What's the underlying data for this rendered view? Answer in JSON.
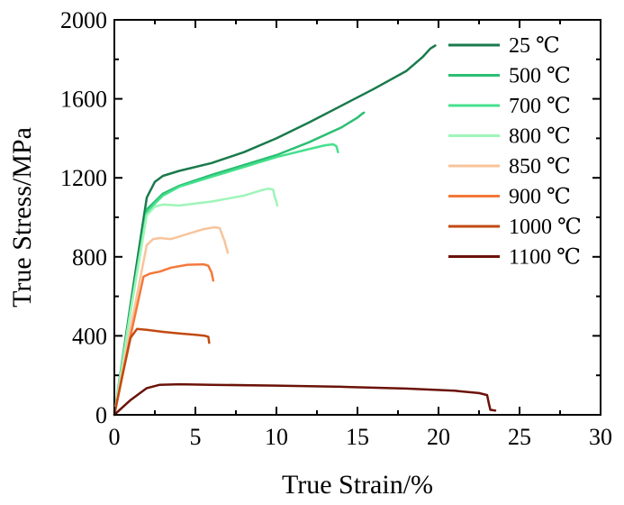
{
  "chart_data": {
    "type": "line",
    "title": "",
    "xlabel": "True Strain/%",
    "ylabel": "True Stress/MPa",
    "xlim": [
      0,
      30
    ],
    "ylim": [
      0,
      2000
    ],
    "xticks": [
      0,
      5,
      10,
      15,
      20,
      25,
      30
    ],
    "yticks": [
      0,
      400,
      800,
      1200,
      1600,
      2000
    ],
    "legend_position": "top-right",
    "series": [
      {
        "name": "25 ℃",
        "color": "#1a7a4c",
        "x": [
          0,
          1.0,
          2.0,
          2.5,
          3.0,
          4.0,
          6.0,
          8.0,
          10.0,
          12.0,
          14.0,
          16.0,
          18.0,
          19.0,
          19.5,
          19.8
        ],
        "y": [
          0,
          560,
          1100,
          1180,
          1210,
          1235,
          1275,
          1330,
          1400,
          1480,
          1565,
          1650,
          1740,
          1810,
          1855,
          1870
        ]
      },
      {
        "name": "500 ℃",
        "color": "#2bbf73",
        "x": [
          0,
          1.0,
          2.0,
          2.5,
          3.0,
          4.0,
          6.0,
          8.0,
          10.0,
          12.0,
          14.0,
          15.0,
          15.3,
          15.4
        ],
        "y": [
          0,
          540,
          1040,
          1080,
          1120,
          1160,
          1215,
          1265,
          1315,
          1380,
          1455,
          1505,
          1525,
          1530
        ]
      },
      {
        "name": "700 ℃",
        "color": "#45e08d",
        "x": [
          0,
          1.0,
          2.0,
          2.5,
          3.0,
          4.0,
          6.0,
          8.0,
          10.0,
          12.0,
          13.0,
          13.5,
          13.7,
          13.8
        ],
        "y": [
          0,
          530,
          1020,
          1070,
          1110,
          1155,
          1205,
          1255,
          1305,
          1345,
          1365,
          1370,
          1360,
          1330
        ]
      },
      {
        "name": "800 ℃",
        "color": "#9ef5b8",
        "x": [
          0,
          1.0,
          2.0,
          2.5,
          3.0,
          4.0,
          6.0,
          8.0,
          9.0,
          9.5,
          9.8,
          9.9,
          10.0,
          10.05
        ],
        "y": [
          0,
          520,
          1010,
          1055,
          1065,
          1060,
          1080,
          1110,
          1135,
          1145,
          1140,
          1100,
          1080,
          1060
        ]
      },
      {
        "name": "850 ℃",
        "color": "#f8c49b",
        "x": [
          0,
          1.0,
          2.0,
          2.4,
          2.8,
          3.5,
          4.5,
          5.5,
          6.2,
          6.5,
          6.8,
          7.0
        ],
        "y": [
          0,
          440,
          860,
          890,
          895,
          890,
          915,
          940,
          950,
          945,
          880,
          820
        ]
      },
      {
        "name": "900 ℃",
        "color": "#f4783a",
        "x": [
          0,
          1.0,
          1.8,
          2.2,
          2.8,
          3.5,
          4.5,
          5.5,
          5.8,
          6.0,
          6.1
        ],
        "y": [
          0,
          400,
          700,
          715,
          725,
          745,
          760,
          762,
          755,
          720,
          680
        ]
      },
      {
        "name": "1000 ℃",
        "color": "#c24a12",
        "x": [
          0,
          0.5,
          1.0,
          1.4,
          2.0,
          3.0,
          4.0,
          5.0,
          5.6,
          5.8,
          5.85
        ],
        "y": [
          0,
          200,
          390,
          435,
          430,
          420,
          412,
          405,
          400,
          395,
          365
        ]
      },
      {
        "name": "1100 ℃",
        "color": "#6b1208",
        "x": [
          0,
          1.0,
          2.0,
          2.8,
          4.0,
          6.0,
          10.0,
          14.0,
          18.0,
          21.0,
          22.5,
          23.0,
          23.1,
          23.2,
          23.5
        ],
        "y": [
          0,
          75,
          135,
          152,
          155,
          152,
          148,
          142,
          133,
          122,
          110,
          100,
          60,
          25,
          22
        ]
      }
    ]
  }
}
